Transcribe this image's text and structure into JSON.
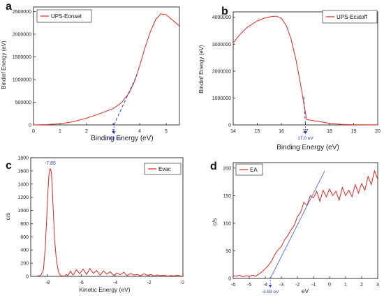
{
  "chart_data": [
    {
      "panel": "a",
      "type": "line",
      "xlabel": "Binding Energy (eV)",
      "ylabel": "Bindinf Energy (eV)",
      "xlim": [
        0,
        5.5
      ],
      "ylim": [
        0,
        2600000
      ],
      "xticks": [
        0,
        1,
        2,
        3,
        4,
        5
      ],
      "yticks": [
        0,
        500000,
        1000000,
        1500000,
        2000000,
        2500000
      ],
      "legend": "top-left",
      "series": [
        {
          "name": "UPS-Eonset",
          "color": "#e0261f",
          "x": [
            0,
            0.5,
            1.0,
            1.5,
            2.0,
            2.5,
            3.0,
            3.3,
            3.6,
            3.8,
            4.0,
            4.2,
            4.4,
            4.6,
            4.8,
            5.0,
            5.2,
            5.5
          ],
          "y": [
            0,
            8000,
            25000,
            70000,
            150000,
            250000,
            360000,
            480000,
            700000,
            950000,
            1300000,
            1700000,
            2050000,
            2320000,
            2450000,
            2430000,
            2330000,
            2180000
          ]
        }
      ],
      "fit_line": {
        "color": "#2a3ec8",
        "style": "dashed",
        "x": [
          3.03,
          3.9
        ],
        "y": [
          0,
          1100000
        ]
      },
      "annotation": {
        "text": "3.03 eV",
        "x": 3.03,
        "color": "#2a3ec8"
      }
    },
    {
      "panel": "b",
      "type": "line",
      "xlabel": "Binding Energy (eV)",
      "ylabel": "Bindinf Energy (eV)",
      "xlim": [
        14,
        20
      ],
      "ylim": [
        0,
        4200000
      ],
      "xticks": [
        14,
        15,
        16,
        17,
        18,
        19,
        20
      ],
      "yticks": [
        0,
        1000000,
        2000000,
        3000000,
        4000000
      ],
      "legend": "top-right",
      "series": [
        {
          "name": "UPS-Ecutoff",
          "color": "#e0261f",
          "x": [
            14.0,
            14.3,
            14.6,
            15.0,
            15.3,
            15.6,
            15.8,
            16.0,
            16.2,
            16.4,
            16.6,
            16.8,
            16.95,
            17.05,
            17.3,
            17.6,
            18.0,
            18.5,
            19.0,
            20.0
          ],
          "y": [
            3050000,
            3380000,
            3640000,
            3860000,
            3970000,
            4030000,
            4040000,
            3960000,
            3700000,
            3200000,
            2450000,
            1500000,
            700000,
            200000,
            160000,
            120000,
            60000,
            20000,
            8000,
            3000
          ]
        }
      ],
      "fit_line": {
        "color": "#2a3ec8",
        "style": "dashed",
        "x": [
          16.93,
          17.0
        ],
        "y": [
          1050000,
          0
        ]
      },
      "annotation": {
        "text": "17.0 eV",
        "x": 17.0,
        "color": "#2a3ec8"
      }
    },
    {
      "panel": "c",
      "type": "line",
      "xlabel": "Kinetic Energy (eV)",
      "ylabel": "c/s",
      "xlim": [
        -9,
        0
      ],
      "ylim": [
        0,
        1800
      ],
      "xticks": [
        -8,
        -6,
        -4,
        -2,
        0
      ],
      "yticks": [
        0,
        200,
        400,
        600,
        800,
        1000,
        1200,
        1400,
        1600,
        1800
      ],
      "legend": "top-right",
      "series": [
        {
          "name": "Evac",
          "color": "#e0261f",
          "x": [
            -8.6,
            -8.4,
            -8.25,
            -8.15,
            -8.05,
            -7.98,
            -7.92,
            -7.85,
            -7.78,
            -7.72,
            -7.65,
            -7.58,
            -7.5,
            -7.42,
            -7.35,
            -7.28,
            -7.2,
            -7.1,
            -7.0,
            -6.9,
            -6.8,
            -6.65,
            -6.5,
            -6.3,
            -6.1,
            -5.9,
            -5.7,
            -5.5,
            -5.3,
            -5.1,
            -4.9,
            -4.7,
            -4.5,
            -4.3,
            -4.1,
            -3.9,
            -3.7,
            -3.5,
            -3.3,
            -3.1,
            -2.9,
            -2.7,
            -2.5,
            -2.3,
            -2.1,
            -1.9,
            -1.7,
            -1.5,
            -1.3,
            -1.1,
            -0.9,
            -0.7,
            -0.5,
            -0.3,
            -0.1,
            0
          ],
          "y": [
            5,
            15,
            100,
            400,
            900,
            1300,
            1550,
            1640,
            1580,
            1300,
            900,
            540,
            300,
            150,
            60,
            25,
            10,
            5,
            0,
            30,
            10,
            80,
            20,
            100,
            40,
            110,
            30,
            120,
            45,
            90,
            20,
            80,
            35,
            70,
            15,
            50,
            25,
            60,
            10,
            45,
            20,
            30,
            8,
            40,
            15,
            28,
            5,
            22,
            10,
            18,
            3,
            12,
            6,
            20,
            2,
            5
          ]
        }
      ],
      "annotation": {
        "text": "-7.85",
        "x": -7.85,
        "color": "#2a3ec8"
      }
    },
    {
      "panel": "d",
      "type": "line",
      "xlabel": "eV",
      "ylabel": "c/s",
      "xlim": [
        -6,
        3
      ],
      "ylim": [
        0,
        210
      ],
      "xticks": [
        -6,
        -5,
        -4,
        -3,
        -2,
        -1,
        0,
        1,
        2,
        3
      ],
      "yticks": [
        0,
        50,
        100,
        150,
        200
      ],
      "legend": "top-left",
      "series": [
        {
          "name": "EA",
          "color": "#e0261f",
          "x": [
            -6.0,
            -5.8,
            -5.6,
            -5.4,
            -5.2,
            -5.0,
            -4.8,
            -4.6,
            -4.4,
            -4.2,
            -4.0,
            -3.8,
            -3.6,
            -3.4,
            -3.2,
            -3.0,
            -2.8,
            -2.6,
            -2.4,
            -2.2,
            -2.0,
            -1.8,
            -1.6,
            -1.4,
            -1.2,
            -1.0,
            -0.8,
            -0.6,
            -0.4,
            -0.2,
            0.0,
            0.2,
            0.4,
            0.6,
            0.8,
            1.0,
            1.2,
            1.4,
            1.6,
            1.8,
            2.0,
            2.2,
            2.4,
            2.6,
            2.8,
            3.0
          ],
          "y": [
            5,
            4,
            6,
            3,
            5,
            4,
            6,
            4,
            8,
            12,
            18,
            24,
            32,
            44,
            52,
            58,
            70,
            78,
            88,
            96,
            112,
            120,
            138,
            132,
            150,
            146,
            158,
            140,
            160,
            148,
            162,
            150,
            158,
            142,
            165,
            150,
            160,
            148,
            170,
            155,
            172,
            160,
            185,
            170,
            195,
            180
          ]
        }
      ],
      "fit_line": {
        "color": "#5a78e0",
        "style": "solid",
        "x": [
          -3.69,
          -0.3
        ],
        "y": [
          0,
          195
        ]
      },
      "annotation": {
        "text": "-3.69 eV",
        "x": -3.69,
        "color": "#2a3ec8"
      }
    }
  ]
}
